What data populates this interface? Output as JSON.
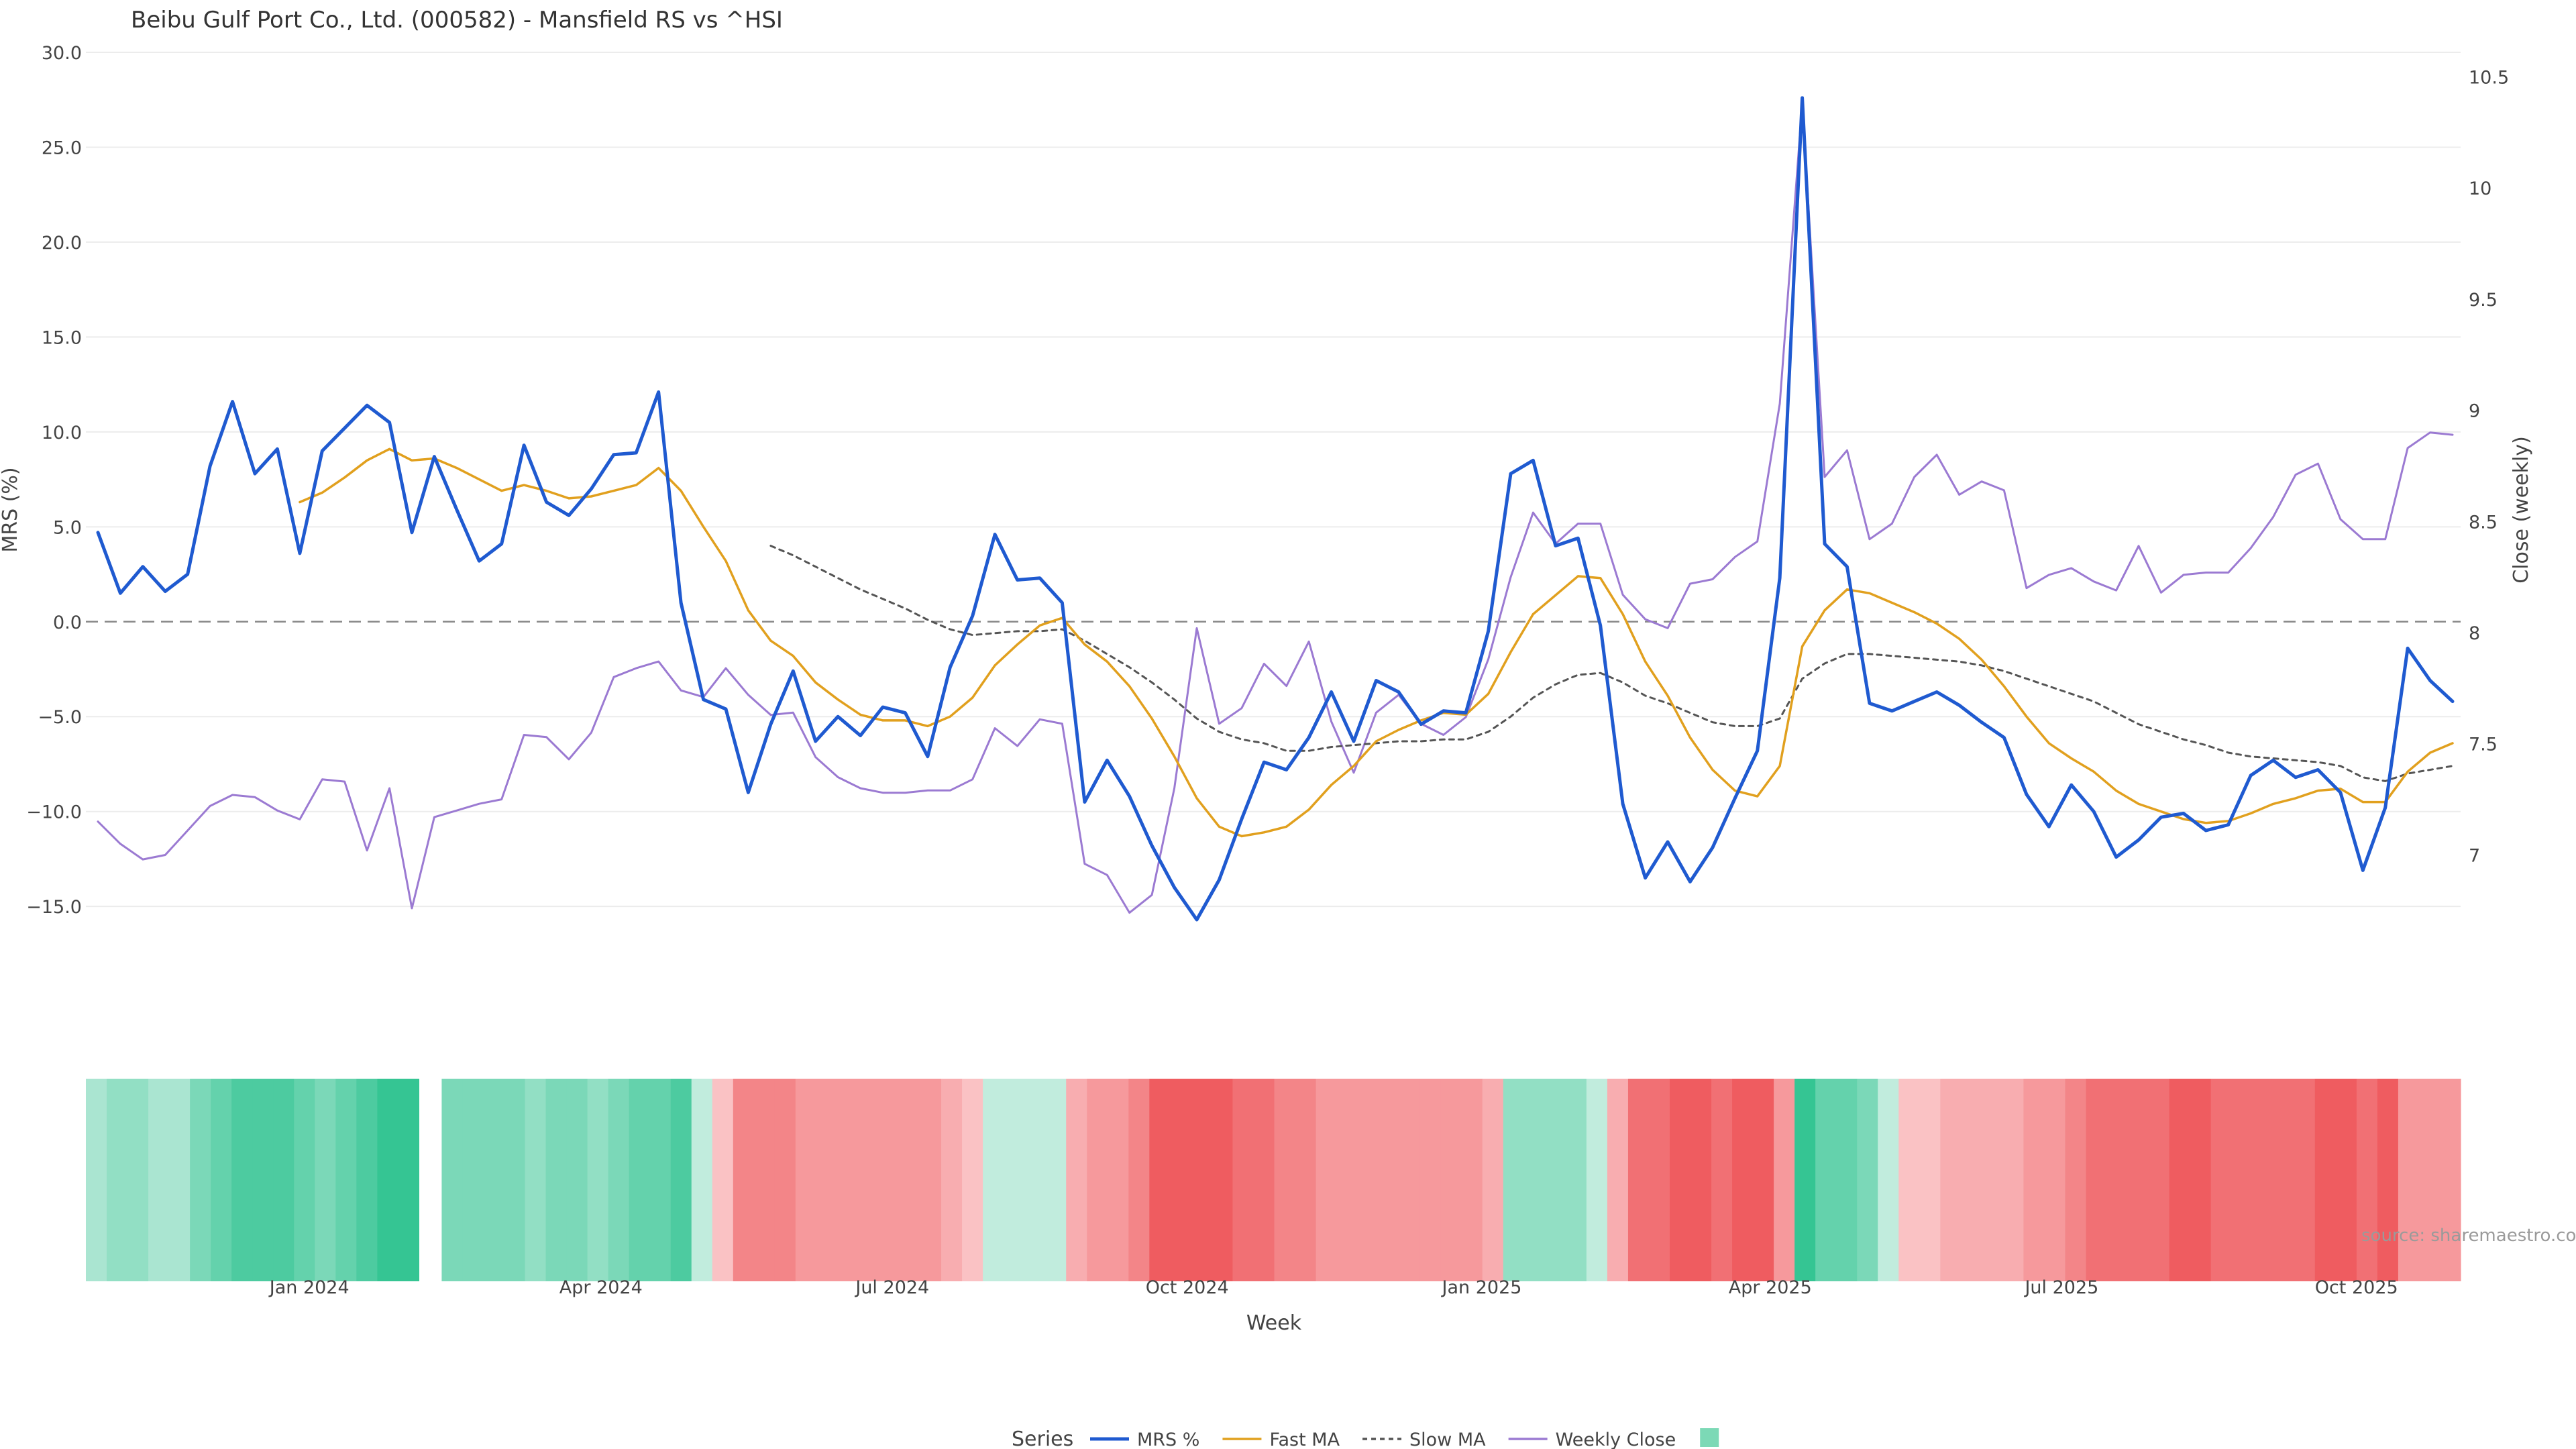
{
  "chart_data": {
    "type": "line",
    "title": "Beibu Gulf Port Co., Ltd. (000582) - Mansfield RS vs ^HSI",
    "xlabel": "Week",
    "ylabel_left": "MRS (%)",
    "ylabel_right": "Close (weekly)",
    "x_start": "2023-10-27",
    "x_step_days": 7,
    "x_ticks": [
      "Jan 2024",
      "Apr 2024",
      "Jul 2024",
      "Oct 2024",
      "Jan 2025",
      "Apr 2025",
      "Jul 2025",
      "Oct 2025"
    ],
    "y_left_ticks": [
      30,
      25,
      20,
      15,
      10,
      5,
      0,
      -5,
      -10,
      -15
    ],
    "y_left_tick_labels": [
      "30.0",
      "25.0",
      "20.0",
      "15.0",
      "10.0",
      "5.0",
      "0.0",
      "−5.0",
      "−10.0",
      "−15.0"
    ],
    "y_left_range": [
      -19.2,
      30.0
    ],
    "y_right_ticks": [
      10.5,
      10,
      9.5,
      9,
      8.5,
      8,
      7.5,
      7
    ],
    "y_right_tick_labels": [
      "10.5",
      "10",
      "9.5",
      "9",
      "8.5",
      "8",
      "7.5",
      "7"
    ],
    "y_right_range": [
      6.41,
      10.61
    ],
    "zero_line": true,
    "grid": true,
    "legend_position": "bottom-center",
    "legend_title": "Series",
    "watermark": "source: sharemaestro.com",
    "series": [
      {
        "name": "MRS %",
        "color": "#1f5ad0",
        "values": [
          4.7,
          1.5,
          2.9,
          1.6,
          2.5,
          8.2,
          11.6,
          7.8,
          9.1,
          3.6,
          9.0,
          10.2,
          11.4,
          10.5,
          4.7,
          8.7,
          5.9,
          3.2,
          4.1,
          9.3,
          6.3,
          5.6,
          7.0,
          8.8,
          8.9,
          12.1,
          1.0,
          -4.1,
          -4.6,
          -9.0,
          -5.4,
          -2.6,
          -6.3,
          -5.0,
          -6.0,
          -4.5,
          -4.8,
          -7.1,
          -2.4,
          0.3,
          4.6,
          2.2,
          2.3,
          1.0,
          -9.5,
          -7.3,
          -9.2,
          -11.8,
          -14.0,
          -15.7,
          -13.6,
          -10.4,
          -7.4,
          -7.8,
          -6.1,
          -3.7,
          -6.3,
          -3.1,
          -3.7,
          -5.4,
          -4.7,
          -4.8,
          -0.5,
          7.8,
          8.5,
          4.0,
          4.4,
          -0.2,
          -9.6,
          -13.5,
          -11.6,
          -13.7,
          -11.9,
          -9.3,
          -6.8,
          2.3,
          27.6,
          4.1,
          2.9,
          -4.3,
          -4.7,
          -4.2,
          -3.7,
          -4.4,
          -5.3,
          -6.1,
          -9.1,
          -10.8,
          -8.6,
          -10.0,
          -12.4,
          -11.5,
          -10.3,
          -10.1,
          -11.0,
          -10.7,
          -8.1,
          -7.3,
          -8.2,
          -7.8,
          -9.0,
          -13.1,
          -9.8,
          -1.4,
          -3.1,
          -4.2
        ]
      },
      {
        "name": "Fast MA",
        "color": "#e1a01e",
        "values": [
          null,
          null,
          null,
          null,
          null,
          null,
          null,
          null,
          null,
          6.3,
          6.8,
          7.6,
          8.5,
          9.1,
          8.5,
          8.6,
          8.1,
          7.5,
          6.9,
          7.2,
          6.9,
          6.5,
          6.6,
          6.9,
          7.2,
          8.1,
          6.9,
          5.0,
          3.2,
          0.6,
          -1.0,
          -1.8,
          -3.2,
          -4.1,
          -4.9,
          -5.2,
          -5.2,
          -5.5,
          -5.0,
          -4.0,
          -2.3,
          -1.2,
          -0.2,
          0.2,
          -1.2,
          -2.1,
          -3.4,
          -5.1,
          -7.1,
          -9.3,
          -10.8,
          -11.3,
          -11.1,
          -10.8,
          -9.9,
          -8.6,
          -7.6,
          -6.3,
          -5.7,
          -5.2,
          -4.8,
          -4.9,
          -3.8,
          -1.6,
          0.4,
          1.4,
          2.4,
          2.3,
          0.4,
          -2.1,
          -3.9,
          -6.1,
          -7.8,
          -8.9,
          -9.2,
          -7.6,
          -1.3,
          0.6,
          1.7,
          1.5,
          1.0,
          0.5,
          -0.1,
          -0.9,
          -2.0,
          -3.4,
          -5.0,
          -6.4,
          -7.2,
          -7.9,
          -8.9,
          -9.6,
          -10.0,
          -10.4,
          -10.6,
          -10.5,
          -10.1,
          -9.6,
          -9.3,
          -8.9,
          -8.8,
          -9.5,
          -9.5,
          -7.9,
          -6.9,
          -6.4
        ]
      },
      {
        "name": "Slow MA",
        "color": "#555555",
        "dashed": true,
        "values": [
          null,
          null,
          null,
          null,
          null,
          null,
          null,
          null,
          null,
          null,
          null,
          null,
          null,
          null,
          null,
          null,
          null,
          null,
          null,
          null,
          null,
          null,
          null,
          null,
          null,
          null,
          null,
          null,
          null,
          null,
          4.0,
          3.5,
          2.9,
          2.3,
          1.7,
          1.2,
          0.7,
          0.1,
          -0.4,
          -0.7,
          -0.6,
          -0.5,
          -0.5,
          -0.4,
          -1.0,
          -1.7,
          -2.4,
          -3.2,
          -4.1,
          -5.1,
          -5.8,
          -6.2,
          -6.4,
          -6.8,
          -6.8,
          -6.6,
          -6.5,
          -6.4,
          -6.3,
          -6.3,
          -6.2,
          -6.2,
          -5.8,
          -5.0,
          -4.0,
          -3.3,
          -2.8,
          -2.7,
          -3.2,
          -3.9,
          -4.3,
          -4.8,
          -5.3,
          -5.5,
          -5.5,
          -5.1,
          -3.0,
          -2.2,
          -1.7,
          -1.7,
          -1.8,
          -1.9,
          -2.0,
          -2.1,
          -2.3,
          -2.6,
          -3.0,
          -3.4,
          -3.8,
          -4.2,
          -4.8,
          -5.4,
          -5.8,
          -6.2,
          -6.5,
          -6.9,
          -7.1,
          -7.2,
          -7.3,
          -7.4,
          -7.6,
          -8.2,
          -8.4,
          -8.0,
          -7.8,
          -7.6
        ]
      },
      {
        "name": "Weekly Close",
        "color": "#9b7ad2",
        "axis": "right",
        "values": [
          7.15,
          7.05,
          6.98,
          7.0,
          7.11,
          7.22,
          7.27,
          7.26,
          7.2,
          7.16,
          7.34,
          7.33,
          7.02,
          7.3,
          6.76,
          7.17,
          7.2,
          7.23,
          7.25,
          7.54,
          7.53,
          7.43,
          7.55,
          7.8,
          7.84,
          7.87,
          7.74,
          7.71,
          7.84,
          7.72,
          7.63,
          7.64,
          7.44,
          7.35,
          7.3,
          7.28,
          7.28,
          7.29,
          7.29,
          7.34,
          7.57,
          7.49,
          7.61,
          7.59,
          6.96,
          6.91,
          6.74,
          6.82,
          7.3,
          8.02,
          7.59,
          7.66,
          7.86,
          7.76,
          7.96,
          7.6,
          7.37,
          7.64,
          7.72,
          7.59,
          7.54,
          7.62,
          7.88,
          8.25,
          8.54,
          8.4,
          8.49,
          8.49,
          8.17,
          8.06,
          8.02,
          8.22,
          8.24,
          8.34,
          8.41,
          9.03,
          10.38,
          8.7,
          8.82,
          8.42,
          8.49,
          8.7,
          8.8,
          8.62,
          8.68,
          8.64,
          8.2,
          8.26,
          8.29,
          8.23,
          8.19,
          8.39,
          8.18,
          8.26,
          8.27,
          8.27,
          8.38,
          8.52,
          8.71,
          8.76,
          8.51,
          8.42,
          8.42,
          8.83,
          8.9,
          8.89
        ]
      },
      {
        "name": "",
        "color": "#7cd9b6",
        "legend_swatch": "square"
      }
    ],
    "rs_strip": {
      "gap_after_index": 15,
      "values": [
        2,
        3,
        3,
        2,
        2,
        4,
        5,
        6,
        6,
        6,
        5,
        4,
        5,
        6,
        7,
        7,
        4,
        4,
        4,
        4,
        3,
        4,
        4,
        3,
        4,
        5,
        5,
        6,
        1,
        -1,
        -4,
        -4,
        -4,
        -3,
        -3,
        -3,
        -3,
        -3,
        -3,
        -3,
        -2,
        -1,
        1,
        1,
        1,
        1,
        -2,
        -3,
        -3,
        -4,
        -6,
        -6,
        -6,
        -6,
        -5,
        -5,
        -4,
        -4,
        -3,
        -3,
        -3,
        -3,
        -3,
        -3,
        -3,
        -3,
        -2,
        3,
        3,
        3,
        3,
        1,
        -2,
        -5,
        -5,
        -6,
        -6,
        -5,
        -6,
        -6,
        -3,
        7,
        5,
        5,
        4,
        1,
        -1,
        -1,
        -2,
        -2,
        -2,
        -2,
        -3,
        -3,
        -4,
        -5,
        -5,
        -5,
        -5,
        -6,
        -6,
        -5,
        -5,
        -5,
        -5,
        -5,
        -6,
        -6,
        -5,
        -6,
        -3,
        -3,
        -3
      ]
    }
  }
}
